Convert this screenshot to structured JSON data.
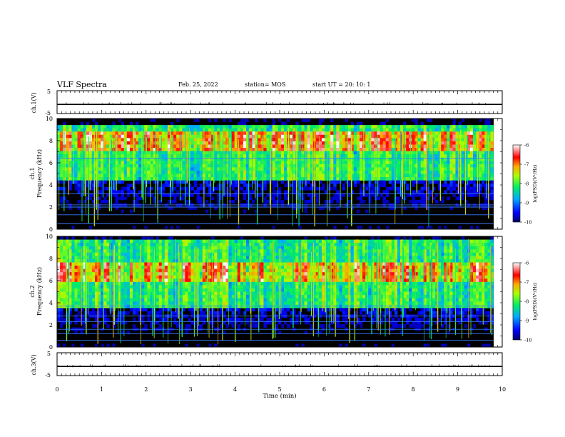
{
  "header": {
    "title": "VLF Spectra",
    "date": "Feb. 25, 2022",
    "station": "station= MOS",
    "start_ut": "start  UT =   20: 10: 1"
  },
  "chart_data": [
    {
      "type": "line",
      "name": "ch1-waveform",
      "ylabel": "ch.1(V)",
      "ylim": [
        -5,
        5
      ],
      "yticks": [
        "5",
        "-5"
      ],
      "x": [
        0,
        10
      ],
      "values": [
        -1,
        -1
      ],
      "xlim": [
        0,
        10
      ]
    },
    {
      "type": "heatmap",
      "name": "ch1-spectrogram",
      "ylabel": "ch.1\nFrequency (kHz)",
      "ylabel_line1": "ch.1",
      "ylabel_line2": "Frequency (kHz)",
      "ylim": [
        0,
        10
      ],
      "yticks": [
        "0",
        "2",
        "4",
        "6",
        "8",
        "10"
      ],
      "xlim": [
        0,
        9.8
      ],
      "colorbar": {
        "label": "log(PSD)(V²/Hz)",
        "label_text": "log(PSD)(V²/Hz)",
        "range": [
          -10,
          -6
        ],
        "ticks": [
          "-6",
          "-7",
          "-8",
          "-9",
          "-10"
        ]
      },
      "dominant_band_khz": [
        4.5,
        9.3
      ],
      "peak_band_khz": [
        7.2,
        8.8
      ],
      "horizontal_lines_khz": [
        0.5,
        1.3,
        2.0,
        2.2,
        3.2,
        6.4
      ]
    },
    {
      "type": "heatmap",
      "name": "ch2-spectrogram",
      "ylabel_line1": "ch.2",
      "ylabel_line2": "Frequency (kHz)",
      "ylim": [
        0,
        10
      ],
      "yticks": [
        "0",
        "2",
        "4",
        "6",
        "8",
        "10"
      ],
      "xlim": [
        0,
        9.8
      ],
      "colorbar": {
        "label_text": "log(PSD)(V²/Hz)",
        "range": [
          -10,
          -6
        ],
        "ticks": [
          "-6",
          "-7",
          "-8",
          "-9",
          "-10"
        ]
      },
      "dominant_band_khz": [
        3.5,
        9.8
      ],
      "peak_band_khz": [
        5.8,
        7.6
      ],
      "horizontal_lines_khz": [
        0.6,
        1.2,
        1.6,
        2.3,
        2.8,
        3.7
      ]
    },
    {
      "type": "line",
      "name": "ch3-waveform",
      "ylabel": "ch.3(V)",
      "ylim": [
        -5,
        5
      ],
      "yticks": [
        "5",
        "-5"
      ],
      "x": [
        0,
        10
      ],
      "values": [
        -1,
        -1
      ],
      "xlim": [
        0,
        10
      ]
    }
  ],
  "x_axis": {
    "label": "Time (min)",
    "ticks": [
      "0",
      "1",
      "2",
      "3",
      "4",
      "5",
      "6",
      "7",
      "8",
      "9",
      "10"
    ],
    "range": [
      0,
      10
    ]
  },
  "colors": {
    "axis": "#000000",
    "background": "#ffffff",
    "trace": "#000000"
  }
}
